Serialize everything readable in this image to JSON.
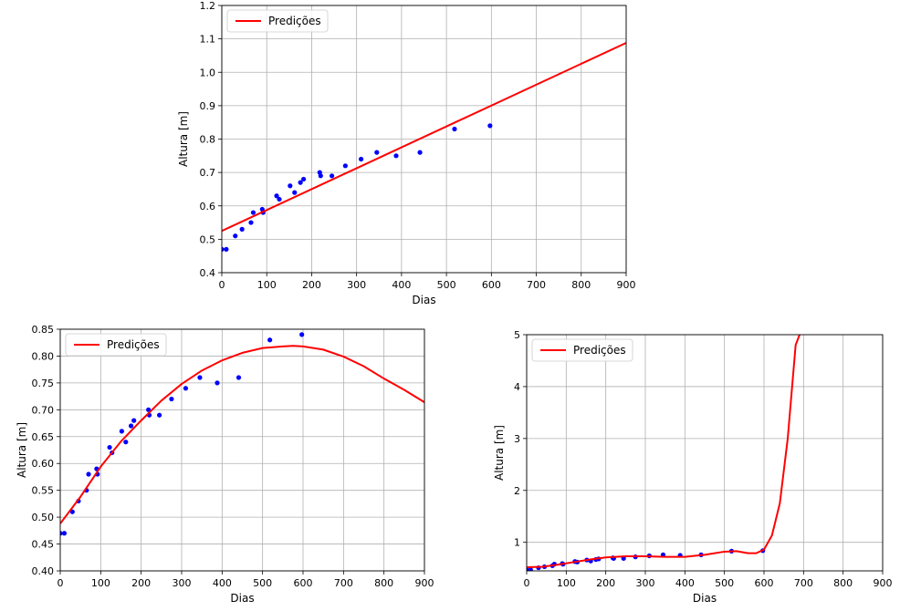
{
  "colors": {
    "points": "#0000ff",
    "line": "#ff0000",
    "grid": "#b0b0b0",
    "axes": "#000000"
  },
  "chart_data": [
    {
      "type": "scatter",
      "subtype": "scatter-with-fit-line",
      "fit": "linear",
      "xlabel": "Dias",
      "ylabel": "Altura [m]",
      "xlim": [
        0,
        900
      ],
      "ylim": [
        0.4,
        1.2
      ],
      "xticks": [
        0,
        100,
        200,
        300,
        400,
        500,
        600,
        700,
        800,
        900
      ],
      "yticks": [
        0.4,
        0.5,
        0.6,
        0.7,
        0.8,
        0.9,
        1.0,
        1.1,
        1.2
      ],
      "yticks_labels": [
        "0.4",
        "0.5",
        "0.6",
        "0.7",
        "0.8",
        "0.9",
        "1.0",
        "1.1",
        "1.2"
      ],
      "grid": true,
      "legend": {
        "position": "top-left",
        "entries": [
          "Predições"
        ]
      },
      "series": [
        {
          "kind": "points",
          "x": [
            0,
            10,
            30,
            45,
            65,
            70,
            90,
            92,
            122,
            128,
            152,
            162,
            175,
            182,
            218,
            220,
            245,
            275,
            310,
            345,
            388,
            441,
            518,
            597
          ],
          "y": [
            0.47,
            0.47,
            0.51,
            0.53,
            0.55,
            0.58,
            0.59,
            0.58,
            0.63,
            0.62,
            0.66,
            0.64,
            0.67,
            0.68,
            0.7,
            0.69,
            0.69,
            0.72,
            0.74,
            0.76,
            0.75,
            0.76,
            0.83,
            0.84
          ]
        },
        {
          "name": "Predições",
          "kind": "line",
          "x": [
            0,
            900
          ],
          "y": [
            0.525,
            1.088
          ]
        }
      ]
    },
    {
      "type": "scatter",
      "subtype": "scatter-with-fit-line",
      "fit": "quadratic",
      "xlabel": "Dias",
      "ylabel": "Altura [m]",
      "xlim": [
        0,
        900
      ],
      "ylim": [
        0.4,
        0.85
      ],
      "xticks": [
        0,
        100,
        200,
        300,
        400,
        500,
        600,
        700,
        800,
        900
      ],
      "yticks": [
        0.4,
        0.45,
        0.5,
        0.55,
        0.6,
        0.65,
        0.7,
        0.75,
        0.8,
        0.85
      ],
      "yticks_labels": [
        "0.40",
        "0.45",
        "0.50",
        "0.55",
        "0.60",
        "0.65",
        "0.70",
        "0.75",
        "0.80",
        "0.85"
      ],
      "grid": true,
      "legend": {
        "position": "top-left",
        "entries": [
          "Predições"
        ]
      },
      "series": [
        {
          "kind": "points",
          "x": [
            0,
            10,
            30,
            45,
            65,
            70,
            90,
            92,
            122,
            128,
            152,
            162,
            175,
            182,
            218,
            220,
            245,
            275,
            310,
            345,
            388,
            441,
            518,
            597
          ],
          "y": [
            0.47,
            0.47,
            0.51,
            0.53,
            0.55,
            0.58,
            0.59,
            0.58,
            0.63,
            0.62,
            0.66,
            0.64,
            0.67,
            0.68,
            0.7,
            0.69,
            0.69,
            0.72,
            0.74,
            0.76,
            0.75,
            0.76,
            0.83,
            0.84
          ]
        },
        {
          "name": "Predições",
          "kind": "line",
          "x": [
            0,
            50,
            100,
            150,
            200,
            250,
            300,
            350,
            400,
            450,
            500,
            550,
            575,
            600,
            650,
            700,
            750,
            800,
            850,
            900
          ],
          "y": [
            0.488,
            0.538,
            0.594,
            0.641,
            0.68,
            0.717,
            0.748,
            0.773,
            0.792,
            0.806,
            0.815,
            0.818,
            0.819,
            0.818,
            0.812,
            0.799,
            0.781,
            0.758,
            0.737,
            0.714
          ]
        }
      ]
    },
    {
      "type": "scatter",
      "subtype": "scatter-with-fit-line",
      "fit": "high-order polynomial",
      "xlabel": "Dias",
      "ylabel": "Altura [m]",
      "xlim": [
        0,
        900
      ],
      "ylim": [
        0.45,
        5
      ],
      "xticks": [
        0,
        100,
        200,
        300,
        400,
        500,
        600,
        700,
        800,
        900
      ],
      "yticks": [
        1,
        2,
        3,
        4,
        5
      ],
      "yticks_labels": [
        "1",
        "2",
        "3",
        "4",
        "5"
      ],
      "grid": true,
      "legend": {
        "position": "top-left",
        "entries": [
          "Predições"
        ]
      },
      "series": [
        {
          "kind": "points",
          "x": [
            0,
            10,
            30,
            45,
            65,
            70,
            90,
            92,
            122,
            128,
            152,
            162,
            175,
            182,
            218,
            220,
            245,
            275,
            310,
            345,
            388,
            441,
            518,
            597
          ],
          "y": [
            0.47,
            0.47,
            0.51,
            0.53,
            0.55,
            0.58,
            0.59,
            0.58,
            0.63,
            0.62,
            0.66,
            0.64,
            0.67,
            0.68,
            0.7,
            0.69,
            0.69,
            0.72,
            0.74,
            0.76,
            0.75,
            0.76,
            0.83,
            0.84
          ]
        },
        {
          "name": "Predições",
          "kind": "line",
          "x": [
            0,
            40,
            80,
            120,
            160,
            200,
            250,
            300,
            350,
            400,
            450,
            500,
            530,
            560,
            580,
            600,
            620,
            640,
            660,
            680,
            690
          ],
          "y": [
            0.52,
            0.53,
            0.57,
            0.62,
            0.67,
            0.71,
            0.73,
            0.73,
            0.72,
            0.72,
            0.76,
            0.82,
            0.83,
            0.79,
            0.79,
            0.86,
            1.13,
            1.75,
            3.0,
            4.8,
            5.0
          ]
        }
      ]
    }
  ]
}
